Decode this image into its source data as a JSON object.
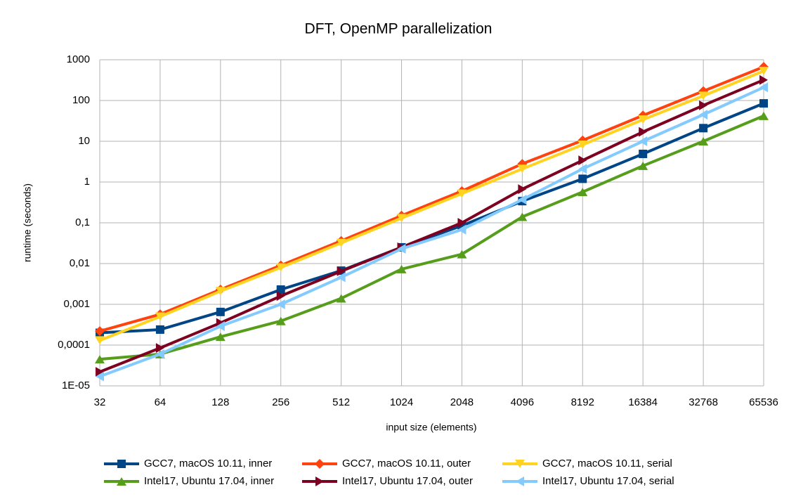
{
  "chart_data": {
    "type": "line",
    "title": "DFT, OpenMP parallelization",
    "x_label": "input size (elements)",
    "y_label": "runtime (seconds)",
    "y_log": true,
    "grid": true,
    "legend": "bottom",
    "categories": [
      "32",
      "64",
      "128",
      "256",
      "512",
      "1024",
      "2048",
      "4096",
      "8192",
      "16384",
      "32768",
      "65536"
    ],
    "ylim": [
      1e-05,
      1000
    ],
    "yticks": [
      {
        "value": 1e-05,
        "label": "1E-05"
      },
      {
        "value": 0.0001,
        "label": "0,0001"
      },
      {
        "value": 0.001,
        "label": "0,001"
      },
      {
        "value": 0.01,
        "label": "0,01"
      },
      {
        "value": 0.1,
        "label": "0,1"
      },
      1,
      10,
      100,
      1000
    ],
    "series": [
      {
        "name": "GCC7, macOS 10.11, inner",
        "color": "#004586",
        "marker": "square",
        "values": [
          0.0002,
          0.00024,
          0.00065,
          0.0023,
          0.0067,
          0.025,
          0.085,
          0.34,
          1.2,
          4.9,
          21,
          85
        ]
      },
      {
        "name": "GCC7, macOS 10.11, outer",
        "color": "#ff420e",
        "marker": "diamond",
        "values": [
          0.00022,
          0.00057,
          0.0023,
          0.009,
          0.036,
          0.15,
          0.6,
          2.8,
          10.5,
          43,
          170,
          670
        ]
      },
      {
        "name": "GCC7, macOS 10.11, serial",
        "color": "#ffd320",
        "marker": "triangle-down",
        "values": [
          0.00013,
          0.0005,
          0.0021,
          0.008,
          0.032,
          0.13,
          0.52,
          2.1,
          8.2,
          34,
          130,
          530
        ]
      },
      {
        "name": "Intel17, Ubuntu 17.04, inner",
        "color": "#579d1c",
        "marker": "triangle-up",
        "values": [
          4.5e-05,
          6e-05,
          0.00016,
          0.00039,
          0.0014,
          0.0073,
          0.017,
          0.14,
          0.57,
          2.5,
          10,
          42
        ]
      },
      {
        "name": "Intel17, Ubuntu 17.04, outer",
        "color": "#7e0021",
        "marker": "triangle-right",
        "values": [
          2.2e-05,
          8.5e-05,
          0.00035,
          0.0016,
          0.0065,
          0.025,
          0.1,
          0.67,
          3.4,
          17,
          76,
          320
        ]
      },
      {
        "name": "Intel17, Ubuntu 17.04, serial",
        "color": "#83caff",
        "marker": "triangle-left",
        "values": [
          1.7e-05,
          6e-05,
          0.00029,
          0.001,
          0.0046,
          0.023,
          0.068,
          0.37,
          2.1,
          10,
          45,
          210
        ]
      }
    ]
  }
}
